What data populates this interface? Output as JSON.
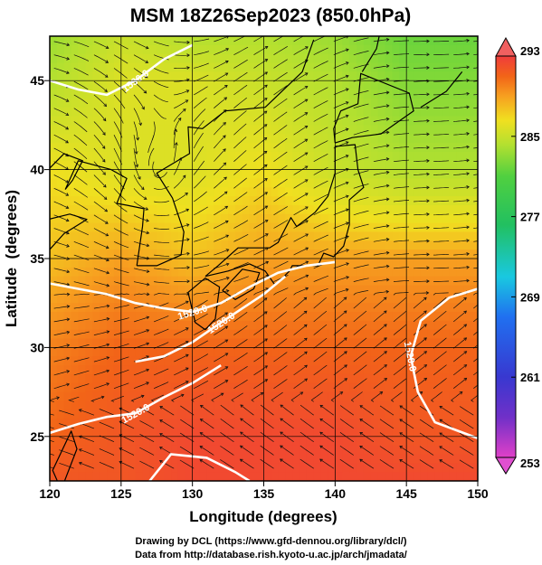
{
  "chart_data": {
    "type": "heatmap",
    "title": "MSM 18Z26Sep2023 (850.0hPa)",
    "xlabel": "Longitude (degrees)",
    "ylabel": "Latitude  (degrees)",
    "xlim": [
      120,
      150
    ],
    "ylim": [
      22.5,
      47.5
    ],
    "x_ticks": [
      120,
      125,
      130,
      135,
      140,
      145,
      150
    ],
    "y_ticks": [
      25,
      30,
      35,
      40,
      45
    ],
    "colorbar": {
      "min": 253,
      "max": 293,
      "ticks": [
        293,
        285,
        277,
        269,
        261,
        253
      ],
      "colors": [
        "#e040c8",
        "#3838d0",
        "#2070f0",
        "#19c8e0",
        "#22c060",
        "#50d040",
        "#b4e030",
        "#f0e020",
        "#f7a020",
        "#f26418",
        "#f03c3c"
      ]
    },
    "temperature_field": {
      "lon": [
        120,
        125,
        130,
        135,
        140,
        145,
        150
      ],
      "lat": [
        47.5,
        45,
        40,
        35,
        30,
        25,
        22.5
      ],
      "values": [
        [
          282,
          284,
          283,
          283,
          282,
          280,
          280
        ],
        [
          283,
          285,
          285,
          284,
          283,
          281,
          281
        ],
        [
          286,
          285,
          285,
          286,
          284,
          283,
          283
        ],
        [
          287,
          288,
          287,
          288,
          288,
          288,
          288
        ],
        [
          289,
          290,
          290,
          290,
          290,
          290,
          290
        ],
        [
          290,
          291,
          292,
          292,
          292,
          291,
          291
        ],
        [
          291,
          291,
          292,
          292,
          292,
          292,
          292
        ]
      ]
    },
    "contours": [
      {
        "label": "1530.0",
        "points": [
          [
            120,
            45.0
          ],
          [
            122,
            44.5
          ],
          [
            124,
            44.2
          ],
          [
            126,
            45.0
          ],
          [
            128,
            46.2
          ],
          [
            130,
            47.0
          ]
        ]
      },
      {
        "label": "1520.0",
        "points": [
          [
            120,
            33.6
          ],
          [
            122,
            33.3
          ],
          [
            124,
            33.0
          ],
          [
            126,
            32.5
          ],
          [
            128,
            32.2
          ],
          [
            130,
            32.0
          ],
          [
            132,
            32.5
          ],
          [
            134,
            33.4
          ],
          [
            136,
            34.2
          ],
          [
            138,
            34.6
          ],
          [
            140,
            34.8
          ]
        ]
      },
      {
        "label": "1520.0",
        "points": [
          [
            126,
            29.2
          ],
          [
            128,
            29.5
          ],
          [
            130,
            30.3
          ],
          [
            132,
            31.4
          ],
          [
            133.5,
            32.2
          ],
          [
            135,
            33.0
          ],
          [
            136.5,
            34.0
          ]
        ]
      },
      {
        "label": "1520.0",
        "points": [
          [
            120,
            25.2
          ],
          [
            122,
            25.7
          ],
          [
            124,
            26.1
          ],
          [
            126,
            26.3
          ],
          [
            128,
            27.2
          ],
          [
            130,
            28.0
          ],
          [
            132,
            29.0
          ]
        ]
      },
      {
        "label": "1520.0",
        "points": [
          [
            150,
            33.3
          ],
          [
            148,
            32.8
          ],
          [
            146,
            31.5
          ],
          [
            145.3,
            29.5
          ],
          [
            145.8,
            27.5
          ],
          [
            147,
            25.8
          ],
          [
            150,
            24.9
          ]
        ]
      },
      {
        "label": "",
        "points": [
          [
            127,
            22.5
          ],
          [
            128.5,
            24.0
          ],
          [
            131,
            23.8
          ],
          [
            133,
            23.0
          ],
          [
            134,
            22.5
          ]
        ]
      }
    ],
    "grid": true,
    "legend": "right colorbar"
  },
  "credits": {
    "line1": "Drawing by DCL (https://www.gfd-dennou.org/library/dcl/)",
    "line2": "Data from http://database.rish.kyoto-u.ac.jp/arch/jmadata/"
  }
}
